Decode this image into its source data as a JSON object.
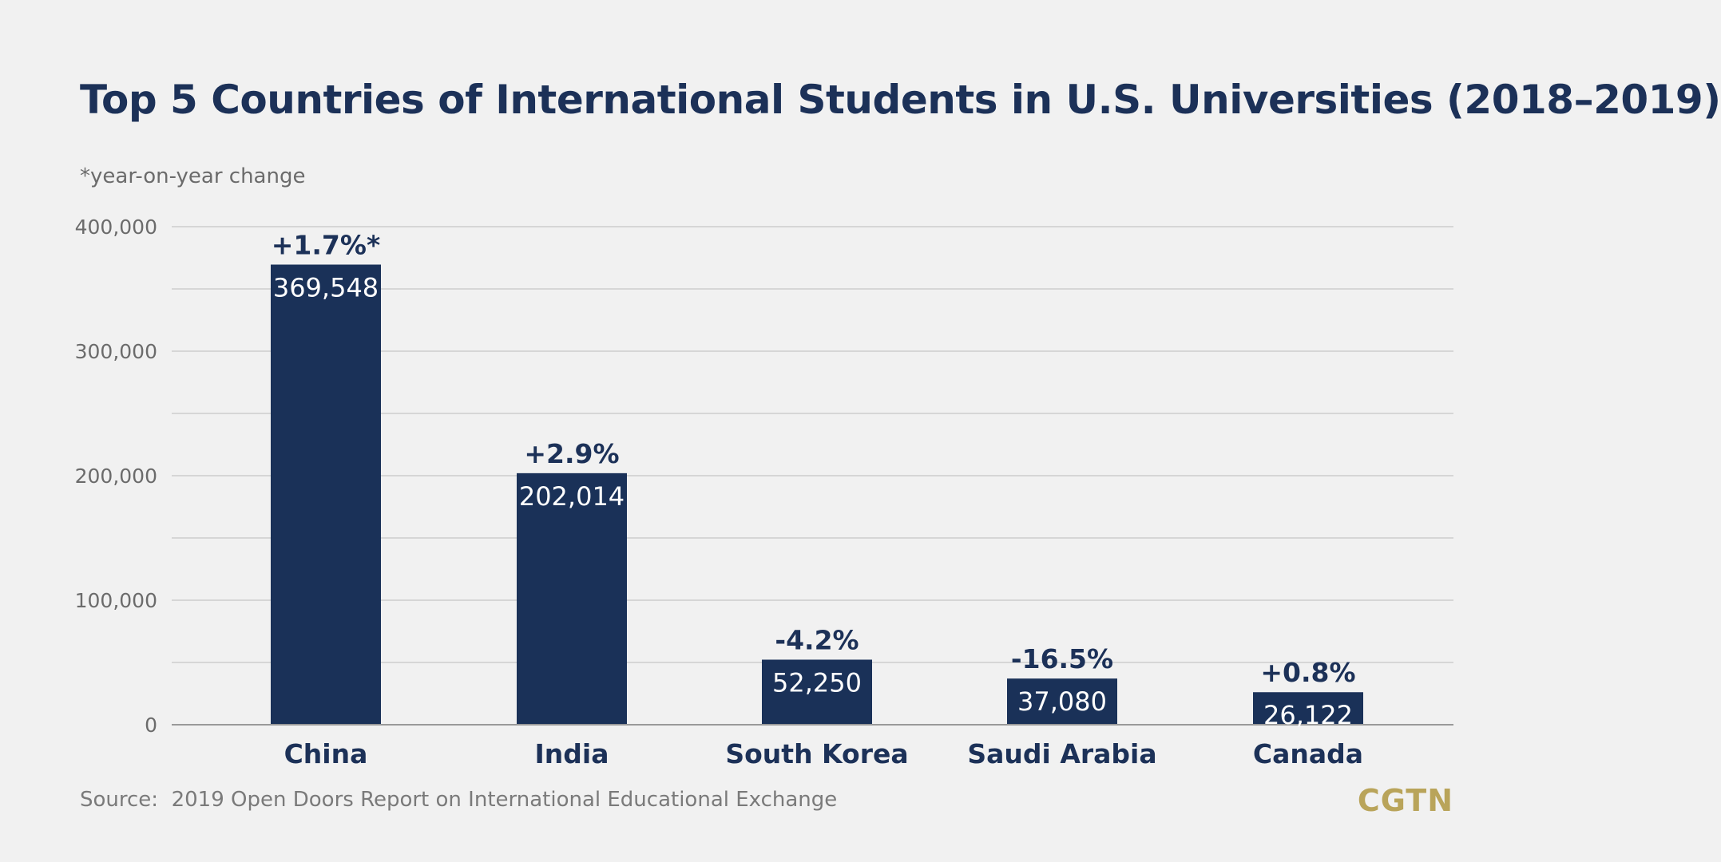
{
  "title": "Top 5 Countries of International Students in U.S. Universities (2018–2019)",
  "note": "*year-on-year change",
  "source": "Source:  2019 Open Doors Report on International Educational Exchange",
  "brand": {
    "text": "CGTN",
    "color": "#b9a45a"
  },
  "colors": {
    "bar": "#1a3158",
    "text_dark": "#1c3158",
    "axis_text": "#6b6b6b",
    "grid": "#c6c6c6"
  },
  "chart_data": {
    "type": "bar",
    "title": "Top 5 Countries of International Students in U.S. Universities (2018–2019)",
    "xlabel": "",
    "ylabel": "",
    "categories": [
      "China",
      "India",
      "South Korea",
      "Saudi Arabia",
      "Canada"
    ],
    "values": [
      369548,
      202014,
      52250,
      37080,
      26122
    ],
    "value_labels": [
      "369,548",
      "202,014",
      "52,250",
      "37,080",
      "26,122"
    ],
    "change_labels": [
      "+1.7%*",
      "+2.9%",
      "-4.2%",
      "-16.5%",
      "+0.8%"
    ],
    "ylim": [
      0,
      400000
    ],
    "yticks": [
      0,
      100000,
      200000,
      300000,
      400000
    ],
    "ytick_labels": [
      "0",
      "100,000",
      "200,000",
      "300,000",
      "400,000"
    ],
    "grid": true,
    "legend": "none"
  }
}
